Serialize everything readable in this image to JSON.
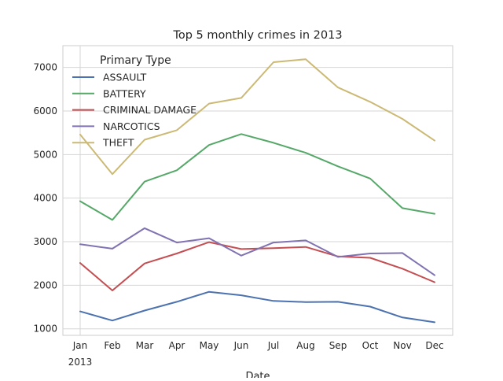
{
  "chart_data": {
    "type": "line",
    "title": "Top 5 monthly crimes in 2013",
    "xlabel": "Date",
    "ylabel": "",
    "categories": [
      "Jan",
      "Feb",
      "Mar",
      "Apr",
      "May",
      "Jun",
      "Jul",
      "Aug",
      "Sep",
      "Oct",
      "Nov",
      "Dec"
    ],
    "year_label": "2013",
    "ylim": [
      850,
      7500
    ],
    "yticks": [
      1000,
      2000,
      3000,
      4000,
      5000,
      6000,
      7000
    ],
    "grid": true,
    "legend": {
      "title": "Primary Type",
      "placement": "top-left"
    },
    "series": [
      {
        "name": "ASSAULT",
        "color": "#4c72b0",
        "values": [
          1400,
          1190,
          1420,
          1620,
          1850,
          1770,
          1640,
          1615,
          1620,
          1510,
          1260,
          1150
        ]
      },
      {
        "name": "BATTERY",
        "color": "#55a868",
        "values": [
          3930,
          3500,
          4380,
          4640,
          5220,
          5470,
          5270,
          5040,
          4730,
          4450,
          3770,
          3640
        ]
      },
      {
        "name": "CRIMINAL DAMAGE",
        "color": "#c44e52",
        "values": [
          2510,
          1880,
          2500,
          2730,
          2990,
          2830,
          2850,
          2880,
          2660,
          2630,
          2380,
          2070
        ]
      },
      {
        "name": "NARCOTICS",
        "color": "#8172b2",
        "values": [
          2940,
          2840,
          3310,
          2980,
          3080,
          2680,
          2980,
          3030,
          2650,
          2730,
          2740,
          2230
        ]
      },
      {
        "name": "THEFT",
        "color": "#ccb974",
        "values": [
          5460,
          4550,
          5340,
          5560,
          6170,
          6300,
          7120,
          7190,
          6540,
          6210,
          5820,
          5320
        ]
      }
    ]
  }
}
